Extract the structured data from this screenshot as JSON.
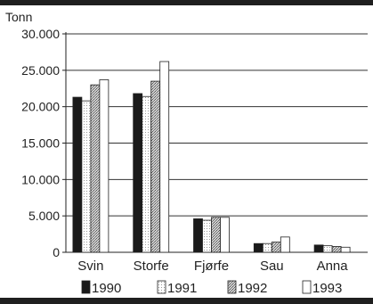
{
  "chart_data": {
    "type": "bar",
    "ylabel": "Tonn",
    "categories": [
      "Svin",
      "Storfe",
      "Fjørfe",
      "Sau",
      "Anna"
    ],
    "series": [
      {
        "name": "1990",
        "values": [
          21300,
          21800,
          4600,
          1200,
          1000
        ]
      },
      {
        "name": "1991",
        "values": [
          20800,
          21400,
          4400,
          1200,
          900
        ]
      },
      {
        "name": "1992",
        "values": [
          23000,
          23500,
          4800,
          1400,
          800
        ]
      },
      {
        "name": "1993",
        "values": [
          23700,
          26200,
          4800,
          2100,
          700
        ]
      }
    ],
    "ylim": [
      0,
      30000
    ],
    "yticks": [
      "0",
      "5.000",
      "10.000",
      "15.000",
      "20.000",
      "25.000",
      "30.000"
    ],
    "ytick_values": [
      0,
      5000,
      10000,
      15000,
      20000,
      25000,
      30000
    ],
    "grid": true,
    "legend_position": "bottom"
  }
}
